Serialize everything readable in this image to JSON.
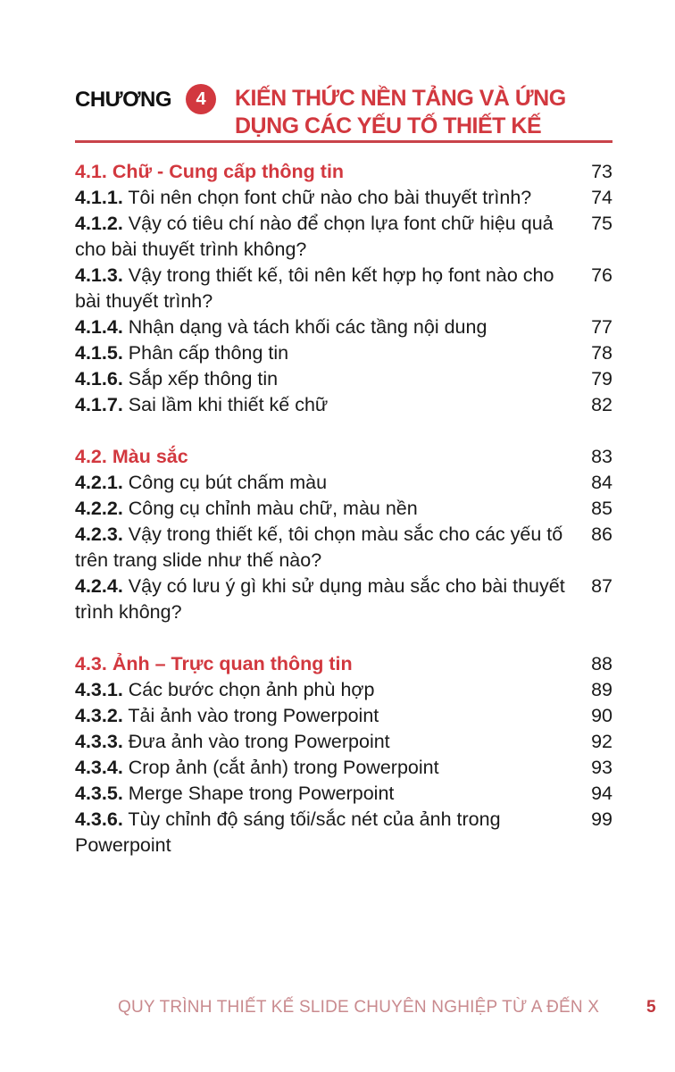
{
  "chapter": {
    "label": "CHƯƠNG",
    "number": "4",
    "title_line1": "KIẾN THỨC NỀN TẢNG VÀ ỨNG",
    "title_line2": "DỤNG CÁC YẾU TỐ THIẾT KẾ"
  },
  "colors": {
    "accent": "#d2383f",
    "footer": "#c98a8e"
  },
  "sections": [
    {
      "num": "4.1.",
      "title": "Chữ - Cung cấp thông tin",
      "page": "73",
      "items": [
        {
          "num": "4.1.1.",
          "text": "Tôi nên chọn font chữ nào cho bài thuyết trình?",
          "page": "74"
        },
        {
          "num": "4.1.2.",
          "text": "Vậy có tiêu chí nào để chọn lựa font chữ hiệu quả cho bài thuyết trình không?",
          "page": "75"
        },
        {
          "num": "4.1.3.",
          "text": "Vậy trong thiết kế, tôi nên kết hợp họ font nào cho bài thuyết trình?",
          "page": "76"
        },
        {
          "num": "4.1.4.",
          "text": "Nhận dạng và tách khối các tầng nội dung",
          "page": "77"
        },
        {
          "num": "4.1.5.",
          "text": "Phân cấp thông tin",
          "page": "78"
        },
        {
          "num": "4.1.6.",
          "text": "Sắp xếp thông tin",
          "page": "79"
        },
        {
          "num": "4.1.7.",
          "text": "Sai lầm khi thiết kế chữ",
          "page": "82"
        }
      ]
    },
    {
      "num": "4.2.",
      "title": "Màu sắc",
      "page": "83",
      "items": [
        {
          "num": "4.2.1.",
          "text": "Công cụ bút chấm màu",
          "page": "84"
        },
        {
          "num": "4.2.2.",
          "text": "Công cụ chỉnh màu chữ, màu nền",
          "page": "85"
        },
        {
          "num": "4.2.3.",
          "text": "Vậy trong thiết kế, tôi chọn màu sắc cho các yếu tố trên trang slide như thế nào?",
          "page": "86"
        },
        {
          "num": "4.2.4.",
          "text": "Vậy có lưu ý gì khi sử dụng màu sắc cho bài thuyết trình không?",
          "page": "87"
        }
      ]
    },
    {
      "num": "4.3.",
      "title": "Ảnh – Trực quan thông tin",
      "page": "88",
      "items": [
        {
          "num": "4.3.1.",
          "text": "Các bước chọn ảnh phù hợp",
          "page": "89"
        },
        {
          "num": "4.3.2.",
          "text": "Tải ảnh vào trong Powerpoint",
          "page": "90"
        },
        {
          "num": "4.3.3.",
          "text": "Đưa ảnh vào trong Powerpoint",
          "page": "92"
        },
        {
          "num": "4.3.4.",
          "text": "Crop ảnh (cắt ảnh) trong Powerpoint",
          "page": "93"
        },
        {
          "num": "4.3.5.",
          "text": "Merge Shape trong Powerpoint",
          "page": "94"
        },
        {
          "num": "4.3.6.",
          "text": "Tùy chỉnh độ sáng tối/sắc nét của ảnh trong Powerpoint",
          "page": "99"
        }
      ]
    }
  ],
  "footer": {
    "title": "QUY TRÌNH THIẾT KẾ SLIDE CHUYÊN NGHIỆP TỪ A ĐẾN X",
    "page_number": "5"
  }
}
